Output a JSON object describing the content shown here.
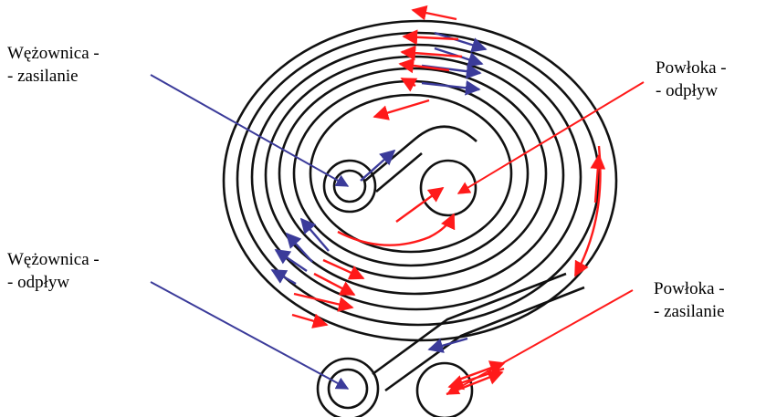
{
  "labels": {
    "coil_supply": {
      "line1": "Wężownica -",
      "line2": "- zasilanie"
    },
    "coil_return": {
      "line1": "Wężownica -",
      "line2": "- odpływ"
    },
    "shell_return": {
      "line1": "Powłoka -",
      "line2": "- odpływ"
    },
    "shell_supply": {
      "line1": "Powłoka -",
      "line2": "- zasilanie"
    }
  },
  "colors": {
    "coil_flow": "#3b3b9a",
    "shell_flow": "#ff1a1a",
    "spiral_wall": "#111111"
  }
}
